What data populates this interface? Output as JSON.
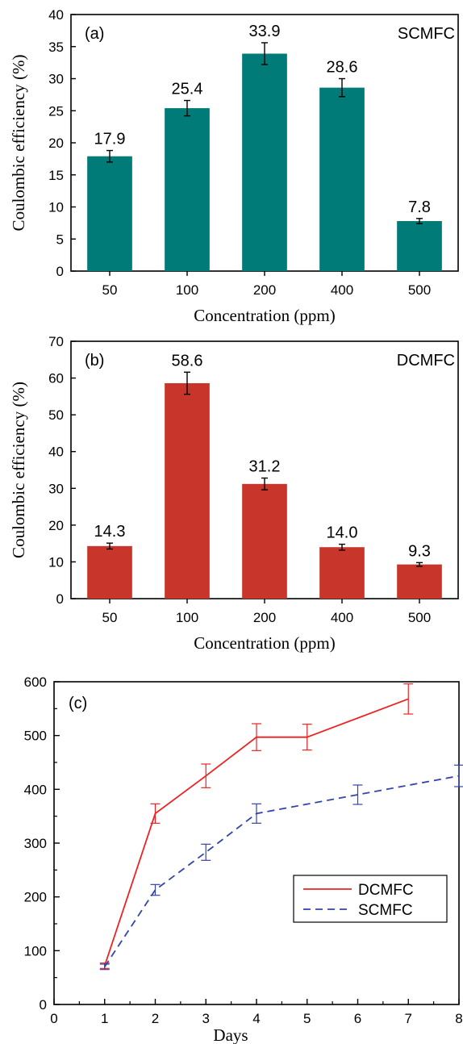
{
  "chart_data": [
    {
      "type": "bar",
      "panel_label": "(a)",
      "annotation": "SCMFC",
      "categories": [
        "50",
        "100",
        "200",
        "400",
        "500"
      ],
      "values": [
        17.9,
        25.4,
        33.9,
        28.6,
        7.8
      ],
      "value_labels": [
        "17.9",
        "25.4",
        "33.9",
        "28.6",
        "7.8"
      ],
      "errors": [
        0.9,
        1.2,
        1.7,
        1.4,
        0.4
      ],
      "xlabel": "Concentration (ppm)",
      "ylabel": "Coulombic efficiency (%)",
      "ylim": [
        0,
        40
      ],
      "yticks": [
        "0",
        "5",
        "10",
        "15",
        "20",
        "25",
        "30",
        "35",
        "40"
      ],
      "color": "#007b78"
    },
    {
      "type": "bar",
      "panel_label": "(b)",
      "annotation": "DCMFC",
      "categories": [
        "50",
        "100",
        "200",
        "400",
        "500"
      ],
      "values": [
        14.3,
        58.6,
        31.2,
        14.0,
        9.3
      ],
      "value_labels": [
        "14.3",
        "58.6",
        "31.2",
        "14.0",
        "9.3"
      ],
      "errors": [
        0.8,
        3.0,
        1.6,
        0.8,
        0.5
      ],
      "xlabel": "Concentration (ppm)",
      "ylabel": "Coulombic efficiency (%)",
      "ylim": [
        0,
        70
      ],
      "yticks": [
        "0",
        "10",
        "20",
        "30",
        "40",
        "50",
        "60",
        "70"
      ],
      "color": "#c8352a"
    },
    {
      "type": "line",
      "panel_label": "(c)",
      "xlabel": "Days",
      "ylabel": "",
      "xlim": [
        0,
        8
      ],
      "ylim": [
        0,
        600
      ],
      "xticks": [
        "0",
        "1",
        "2",
        "3",
        "4",
        "5",
        "6",
        "7",
        "8"
      ],
      "yticks": [
        "0",
        "100",
        "200",
        "300",
        "400",
        "500",
        "600"
      ],
      "legend_position": "bottom-right",
      "series": [
        {
          "name": "DCMFC",
          "style": "solid",
          "color": "#ee2222",
          "x": [
            1,
            2,
            3,
            4,
            5,
            7
          ],
          "y": [
            72,
            355,
            425,
            497,
            497,
            568
          ],
          "err": [
            5,
            18,
            22,
            25,
            24,
            28
          ]
        },
        {
          "name": "SCMFC",
          "style": "dashed",
          "color": "#3344aa",
          "x": [
            1,
            2,
            3,
            4,
            6,
            8
          ],
          "y": [
            70,
            213,
            283,
            355,
            390,
            425
          ],
          "err": [
            5,
            10,
            15,
            18,
            18,
            20
          ]
        }
      ]
    }
  ]
}
